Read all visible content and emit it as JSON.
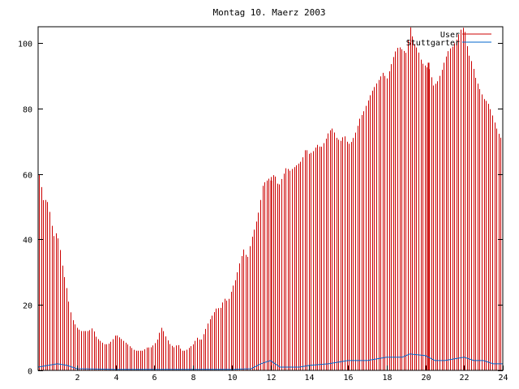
{
  "chart_data": {
    "type": "bar",
    "title": "Montag 10. Maerz 2003",
    "xlabel": "",
    "ylabel": "",
    "xlim": [
      0,
      24
    ],
    "ylim": [
      0,
      105
    ],
    "x_ticks": [
      2,
      4,
      6,
      8,
      10,
      12,
      14,
      16,
      18,
      20,
      22,
      24
    ],
    "x_tick_labels": [
      "2",
      "4",
      "6",
      "8",
      "10",
      "12",
      "14",
      "16",
      "18",
      "20",
      "22",
      "24"
    ],
    "y_ticks": [
      0,
      20,
      40,
      60,
      80,
      100
    ],
    "y_tick_labels": [
      "0",
      "20",
      "40",
      "60",
      "80",
      "100"
    ],
    "grid": false,
    "legend_position": "top-right",
    "x_points": [
      [
        0,
        1
      ],
      [
        0.5,
        51
      ],
      [
        1,
        44
      ],
      [
        1.5,
        30
      ],
      [
        2,
        16
      ],
      [
        2.5,
        12
      ],
      [
        3,
        9
      ],
      [
        3.5,
        8
      ],
      [
        4,
        10
      ],
      [
        4.5,
        8
      ],
      [
        5,
        6
      ],
      [
        5.5,
        6
      ],
      [
        6,
        9
      ],
      [
        6.5,
        11
      ],
      [
        7,
        7
      ],
      [
        7.5,
        6
      ],
      [
        8,
        8
      ],
      [
        8.5,
        13
      ],
      [
        9,
        18
      ],
      [
        9.5,
        20
      ],
      [
        10,
        27
      ],
      [
        10.5,
        35
      ],
      [
        11,
        42
      ],
      [
        11.5,
        52
      ],
      [
        12,
        58
      ],
      [
        12.5,
        59
      ],
      [
        13,
        61
      ],
      [
        13.5,
        62
      ],
      [
        14,
        64
      ],
      [
        14.5,
        67
      ],
      [
        15,
        72
      ],
      [
        15.5,
        70
      ],
      [
        16,
        69
      ],
      [
        16.5,
        74
      ],
      [
        17,
        82
      ],
      [
        17.5,
        87
      ],
      [
        18,
        91
      ],
      [
        18.5,
        97
      ],
      [
        19,
        99
      ],
      [
        19.5,
        98
      ],
      [
        20,
        93
      ],
      [
        20.5,
        86
      ],
      [
        21,
        94
      ],
      [
        21.5,
        97
      ],
      [
        22,
        103
      ],
      [
        22.5,
        92
      ],
      [
        23,
        82
      ],
      [
        23.5,
        75
      ],
      [
        24,
        70
      ]
    ],
    "series": [
      {
        "name": "User",
        "color": "#cc0000",
        "style": "impulses",
        "points": [
          [
            0.0,
            62
          ],
          [
            0.1,
            57
          ],
          [
            0.2,
            55
          ],
          [
            0.3,
            50
          ],
          [
            0.4,
            53
          ],
          [
            0.5,
            51
          ],
          [
            0.6,
            48
          ],
          [
            0.7,
            44
          ],
          [
            0.8,
            41
          ],
          [
            0.9,
            42
          ],
          [
            1.0,
            41
          ],
          [
            1.1,
            38
          ],
          [
            1.2,
            34
          ],
          [
            1.3,
            29
          ],
          [
            1.4,
            28
          ],
          [
            1.5,
            23
          ],
          [
            1.6,
            20
          ],
          [
            1.7,
            17
          ],
          [
            1.8,
            15
          ],
          [
            1.9,
            14
          ],
          [
            2.0,
            13
          ],
          [
            2.2,
            12
          ],
          [
            2.4,
            12
          ],
          [
            2.6,
            12
          ],
          [
            2.8,
            13
          ],
          [
            3.0,
            10
          ],
          [
            3.2,
            9
          ],
          [
            3.4,
            8
          ],
          [
            3.6,
            8
          ],
          [
            3.8,
            9
          ],
          [
            4.0,
            11
          ],
          [
            4.2,
            10
          ],
          [
            4.4,
            9
          ],
          [
            4.6,
            8
          ],
          [
            4.8,
            7
          ],
          [
            5.0,
            6
          ],
          [
            5.2,
            6
          ],
          [
            5.4,
            6
          ],
          [
            5.6,
            7
          ],
          [
            5.8,
            7
          ],
          [
            6.0,
            8
          ],
          [
            6.2,
            10
          ],
          [
            6.3,
            13
          ],
          [
            6.4,
            13
          ],
          [
            6.6,
            10
          ],
          [
            6.8,
            8
          ],
          [
            7.0,
            7
          ],
          [
            7.2,
            8
          ],
          [
            7.4,
            6
          ],
          [
            7.6,
            6
          ],
          [
            7.8,
            7
          ],
          [
            8.0,
            8
          ],
          [
            8.2,
            10
          ],
          [
            8.4,
            9
          ],
          [
            8.6,
            12
          ],
          [
            8.8,
            15
          ],
          [
            9.0,
            17
          ],
          [
            9.2,
            19
          ],
          [
            9.4,
            19
          ],
          [
            9.6,
            22
          ],
          [
            9.8,
            21
          ],
          [
            10.0,
            25
          ],
          [
            10.2,
            28
          ],
          [
            10.4,
            33
          ],
          [
            10.6,
            37
          ],
          [
            10.8,
            34
          ],
          [
            11.0,
            40
          ],
          [
            11.2,
            44
          ],
          [
            11.4,
            49
          ],
          [
            11.6,
            57
          ],
          [
            11.8,
            58
          ],
          [
            12.0,
            59
          ],
          [
            12.2,
            60
          ],
          [
            12.4,
            56
          ],
          [
            12.6,
            59
          ],
          [
            12.8,
            62
          ],
          [
            13.0,
            61
          ],
          [
            13.2,
            62
          ],
          [
            13.4,
            63
          ],
          [
            13.6,
            64
          ],
          [
            13.8,
            68
          ],
          [
            14.0,
            66
          ],
          [
            14.2,
            67
          ],
          [
            14.4,
            69
          ],
          [
            14.6,
            68
          ],
          [
            14.8,
            70
          ],
          [
            15.0,
            73
          ],
          [
            15.2,
            74
          ],
          [
            15.4,
            71
          ],
          [
            15.6,
            70
          ],
          [
            15.8,
            72
          ],
          [
            16.0,
            69
          ],
          [
            16.2,
            70
          ],
          [
            16.4,
            73
          ],
          [
            16.6,
            77
          ],
          [
            16.8,
            79
          ],
          [
            17.0,
            82
          ],
          [
            17.2,
            85
          ],
          [
            17.4,
            87
          ],
          [
            17.6,
            89
          ],
          [
            17.8,
            91
          ],
          [
            18.0,
            89
          ],
          [
            18.2,
            93
          ],
          [
            18.4,
            97
          ],
          [
            18.6,
            99
          ],
          [
            18.8,
            98
          ],
          [
            19.0,
            97
          ],
          [
            19.2,
            105
          ],
          [
            19.4,
            100
          ],
          [
            19.6,
            98
          ],
          [
            19.8,
            94
          ],
          [
            20.0,
            93
          ],
          [
            20.2,
            92
          ],
          [
            20.4,
            87
          ],
          [
            20.6,
            88
          ],
          [
            20.8,
            91
          ],
          [
            21.0,
            95
          ],
          [
            21.2,
            98
          ],
          [
            21.4,
            99
          ],
          [
            21.6,
            101
          ],
          [
            21.8,
            104
          ],
          [
            22.0,
            105
          ],
          [
            22.2,
            97
          ],
          [
            22.4,
            94
          ],
          [
            22.6,
            89
          ],
          [
            22.8,
            86
          ],
          [
            23.0,
            83
          ],
          [
            23.2,
            82
          ],
          [
            23.4,
            79
          ],
          [
            23.6,
            75
          ],
          [
            23.8,
            72
          ],
          [
            24.0,
            70
          ]
        ]
      },
      {
        "name": "Stuttgarter",
        "color": "#0066cc",
        "style": "lines",
        "points": [
          [
            0,
            1
          ],
          [
            0.5,
            1.5
          ],
          [
            1,
            2
          ],
          [
            1.5,
            1.5
          ],
          [
            2,
            0.5
          ],
          [
            4,
            0.3
          ],
          [
            6,
            0.3
          ],
          [
            8,
            0.3
          ],
          [
            10,
            0.3
          ],
          [
            11,
            0.5
          ],
          [
            11.5,
            2
          ],
          [
            12,
            3
          ],
          [
            12.5,
            1
          ],
          [
            13,
            1
          ],
          [
            13.5,
            1
          ],
          [
            14,
            1.5
          ],
          [
            15,
            2
          ],
          [
            16,
            3
          ],
          [
            17,
            3
          ],
          [
            18,
            4
          ],
          [
            18.8,
            4
          ],
          [
            19.2,
            5
          ],
          [
            20,
            4.5
          ],
          [
            20.5,
            3
          ],
          [
            21,
            3
          ],
          [
            22,
            4
          ],
          [
            22.5,
            3
          ],
          [
            23,
            3
          ],
          [
            23.5,
            2
          ],
          [
            24,
            2
          ]
        ]
      }
    ],
    "spikes": [
      {
        "x": 12.0,
        "value": 58
      },
      {
        "x": 20.15,
        "value": 94
      }
    ],
    "legend": {
      "position": "top-right"
    }
  }
}
